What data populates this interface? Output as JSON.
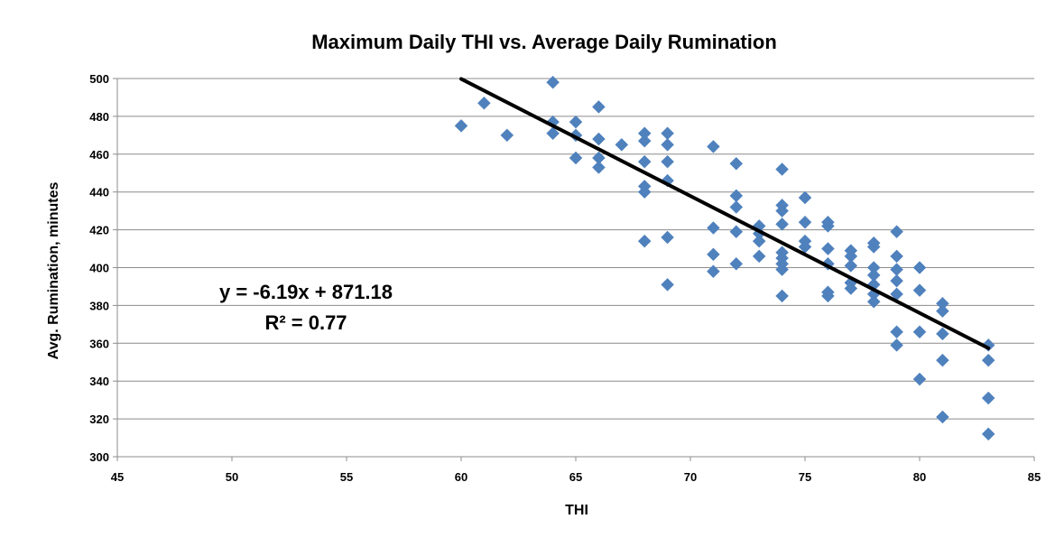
{
  "chart_data": {
    "type": "scatter",
    "title": "Maximum Daily THI vs. Average Daily  Rumination",
    "xlabel": "THI",
    "ylabel": "Avg. Rumination, minutes",
    "xlim": [
      45,
      85
    ],
    "ylim": [
      300,
      500
    ],
    "xticks": [
      45,
      50,
      55,
      60,
      65,
      70,
      75,
      80,
      85
    ],
    "yticks": [
      300,
      320,
      340,
      360,
      380,
      400,
      420,
      440,
      460,
      480,
      500
    ],
    "grid": "horizontal",
    "legend": "none",
    "marker": "diamond",
    "marker_color": "#4F81BD",
    "trendline_color": "#000000",
    "points": [
      [
        60,
        475
      ],
      [
        61,
        487
      ],
      [
        62,
        470
      ],
      [
        64,
        498
      ],
      [
        64,
        477
      ],
      [
        64,
        471
      ],
      [
        65,
        477
      ],
      [
        65,
        470
      ],
      [
        65,
        458
      ],
      [
        66,
        485
      ],
      [
        66,
        468
      ],
      [
        66,
        458
      ],
      [
        66,
        453
      ],
      [
        67,
        465
      ],
      [
        68,
        471
      ],
      [
        68,
        467
      ],
      [
        68,
        456
      ],
      [
        68,
        443
      ],
      [
        68,
        440
      ],
      [
        68,
        414
      ],
      [
        69,
        471
      ],
      [
        69,
        465
      ],
      [
        69,
        456
      ],
      [
        69,
        446
      ],
      [
        69,
        416
      ],
      [
        69,
        391
      ],
      [
        71,
        464
      ],
      [
        71,
        421
      ],
      [
        71,
        407
      ],
      [
        71,
        398
      ],
      [
        72,
        455
      ],
      [
        72,
        438
      ],
      [
        72,
        432
      ],
      [
        72,
        419
      ],
      [
        72,
        402
      ],
      [
        73,
        422
      ],
      [
        73,
        418
      ],
      [
        73,
        414
      ],
      [
        73,
        406
      ],
      [
        74,
        452
      ],
      [
        74,
        433
      ],
      [
        74,
        430
      ],
      [
        74,
        423
      ],
      [
        74,
        408
      ],
      [
        74,
        405
      ],
      [
        74,
        402
      ],
      [
        74,
        399
      ],
      [
        74,
        385
      ],
      [
        75,
        437
      ],
      [
        75,
        424
      ],
      [
        75,
        414
      ],
      [
        75,
        411
      ],
      [
        76,
        424
      ],
      [
        76,
        422
      ],
      [
        76,
        410
      ],
      [
        76,
        402
      ],
      [
        76,
        387
      ],
      [
        76,
        385
      ],
      [
        77,
        409
      ],
      [
        77,
        406
      ],
      [
        77,
        401
      ],
      [
        77,
        392
      ],
      [
        77,
        389
      ],
      [
        78,
        413
      ],
      [
        78,
        411
      ],
      [
        78,
        400
      ],
      [
        78,
        396
      ],
      [
        78,
        391
      ],
      [
        78,
        386
      ],
      [
        78,
        382
      ],
      [
        79,
        419
      ],
      [
        79,
        406
      ],
      [
        79,
        399
      ],
      [
        79,
        393
      ],
      [
        79,
        386
      ],
      [
        79,
        366
      ],
      [
        79,
        359
      ],
      [
        80,
        400
      ],
      [
        80,
        388
      ],
      [
        80,
        366
      ],
      [
        80,
        341
      ],
      [
        81,
        381
      ],
      [
        81,
        377
      ],
      [
        81,
        365
      ],
      [
        81,
        351
      ],
      [
        81,
        321
      ],
      [
        83,
        359
      ],
      [
        83,
        351
      ],
      [
        83,
        331
      ],
      [
        83,
        312
      ]
    ],
    "trendline": {
      "type": "linear",
      "slope": -6.19,
      "intercept": 871.18,
      "x_range": [
        60,
        83
      ],
      "equation_label": "y = -6.19x + 871.18",
      "r2_label": "R² = 0.77"
    }
  }
}
